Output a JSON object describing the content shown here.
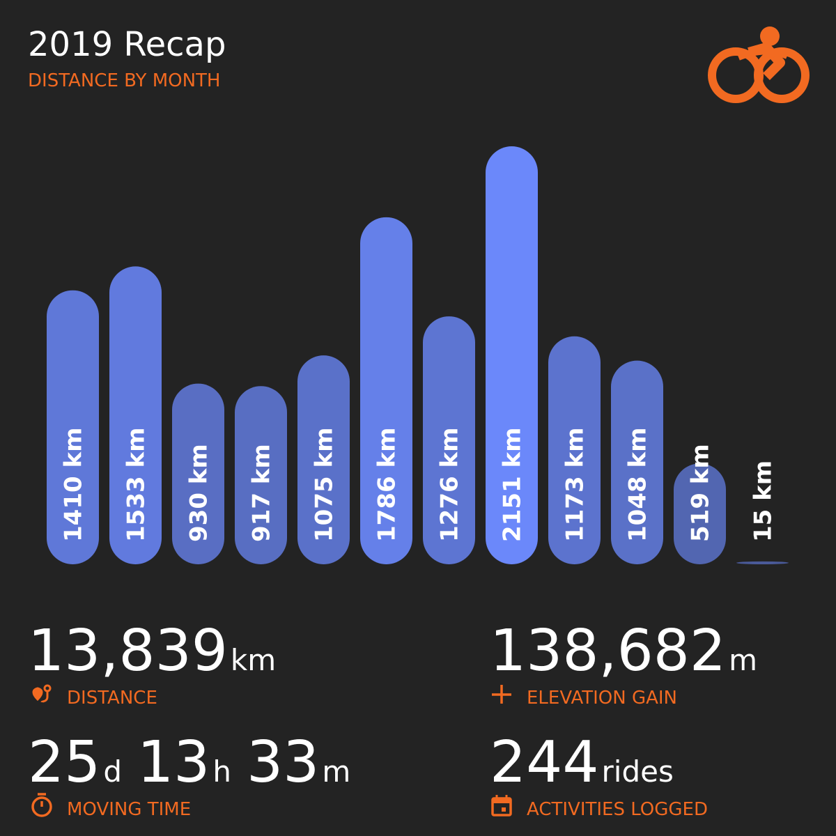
{
  "chart_data": {
    "type": "bar",
    "title": "2019 Recap",
    "subtitle": "DISTANCE BY MONTH",
    "values": [
      1410,
      1533,
      930,
      917,
      1075,
      1786,
      1276,
      2151,
      1173,
      1048,
      519,
      15
    ],
    "value_labels": [
      "1410 km",
      "1533 km",
      "930 km",
      "917 km",
      "1075 km",
      "1786 km",
      "1276 km",
      "2151 km",
      "1173 km",
      "1048 km",
      "519 km",
      "15 km"
    ],
    "color": "#6b88fa"
  },
  "stats": [
    {
      "value": "13,839",
      "unit": "km",
      "label": "DISTANCE"
    },
    {
      "value": "138,682",
      "unit": "m",
      "label": "ELEVATION GAIN"
    },
    {
      "parts": [
        {
          "value": "25",
          "unit": "d"
        },
        {
          "value": "13",
          "unit": "h"
        },
        {
          "value": "33",
          "unit": "m"
        }
      ],
      "label": "MOVING TIME"
    },
    {
      "value": "244",
      "unit": "rides",
      "label": "ACTIVITIES LOGGED"
    }
  ]
}
